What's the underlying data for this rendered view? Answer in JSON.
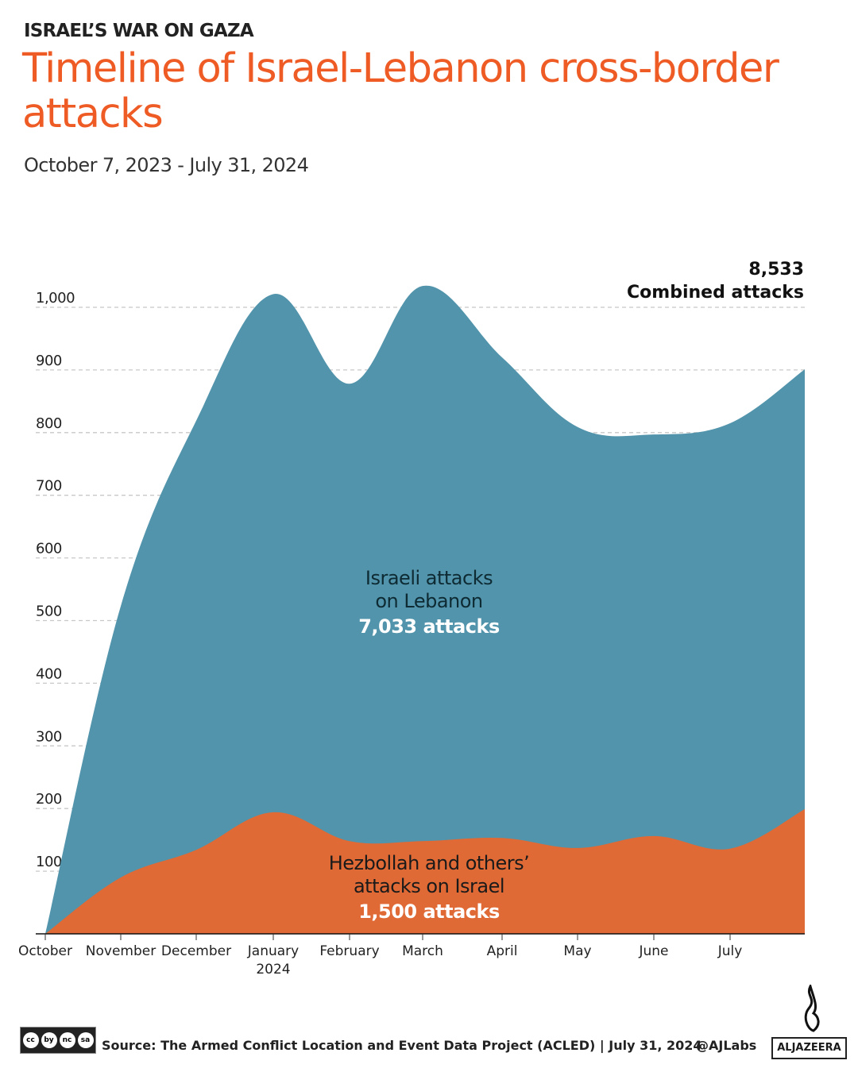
{
  "header": {
    "kicker": "ISRAEL’S WAR ON GAZA",
    "title": "Timeline of Israel-Lebanon cross-border attacks",
    "subtitle": "October 7, 2023 - July 31, 2024"
  },
  "chart_data": {
    "type": "area",
    "stacked": true,
    "x": [
      "2023-10-07",
      "2023-11-01",
      "2023-12-01",
      "2024-01-01",
      "2024-02-01",
      "2024-03-01",
      "2024-04-01",
      "2024-05-01",
      "2024-06-01",
      "2024-07-01",
      "2024-07-31"
    ],
    "x_tick_labels": [
      "October",
      "November",
      "December",
      "January",
      "February",
      "March",
      "April",
      "May",
      "June",
      "July"
    ],
    "x_tick_sublabel": {
      "January": "2024"
    },
    "y_ticks": [
      100,
      200,
      300,
      400,
      500,
      600,
      700,
      800,
      900,
      1000
    ],
    "y_tick_labels": [
      "100",
      "200",
      "300",
      "400",
      "500",
      "600",
      "700",
      "800",
      "900",
      "1,000"
    ],
    "ylim": [
      0,
      1000
    ],
    "grid": "horizontal-dashed",
    "series": [
      {
        "name": "Hezbollah and others’ attacks on Israel",
        "total_label": "1,500 attacks",
        "color": "#e06a36",
        "values": [
          0,
          90,
          134,
          194,
          148,
          148,
          153,
          137,
          156,
          136,
          199
        ]
      },
      {
        "name": "Israeli attacks on Lebanon",
        "total_label": "7,033 attacks",
        "color": "#5194ab",
        "values": [
          0,
          433,
          685,
          827,
          730,
          886,
          767,
          672,
          641,
          679,
          702
        ]
      }
    ],
    "annotation": {
      "value": "8,533",
      "text": "Combined attacks"
    },
    "labels": {
      "israel_line1": "Israeli attacks",
      "israel_line2": "on Lebanon",
      "hezb_line1": "Hezbollah and others’",
      "hezb_line2": "attacks on Israel"
    }
  },
  "footer": {
    "source": "Source:  The Armed Conflict Location and Event Data Project (ACLED) | July 31, 2024",
    "handle": "@AJLabs",
    "logo": "ALJAZEERA",
    "cc_icons": [
      "cc",
      "by",
      "nc",
      "sa"
    ]
  }
}
